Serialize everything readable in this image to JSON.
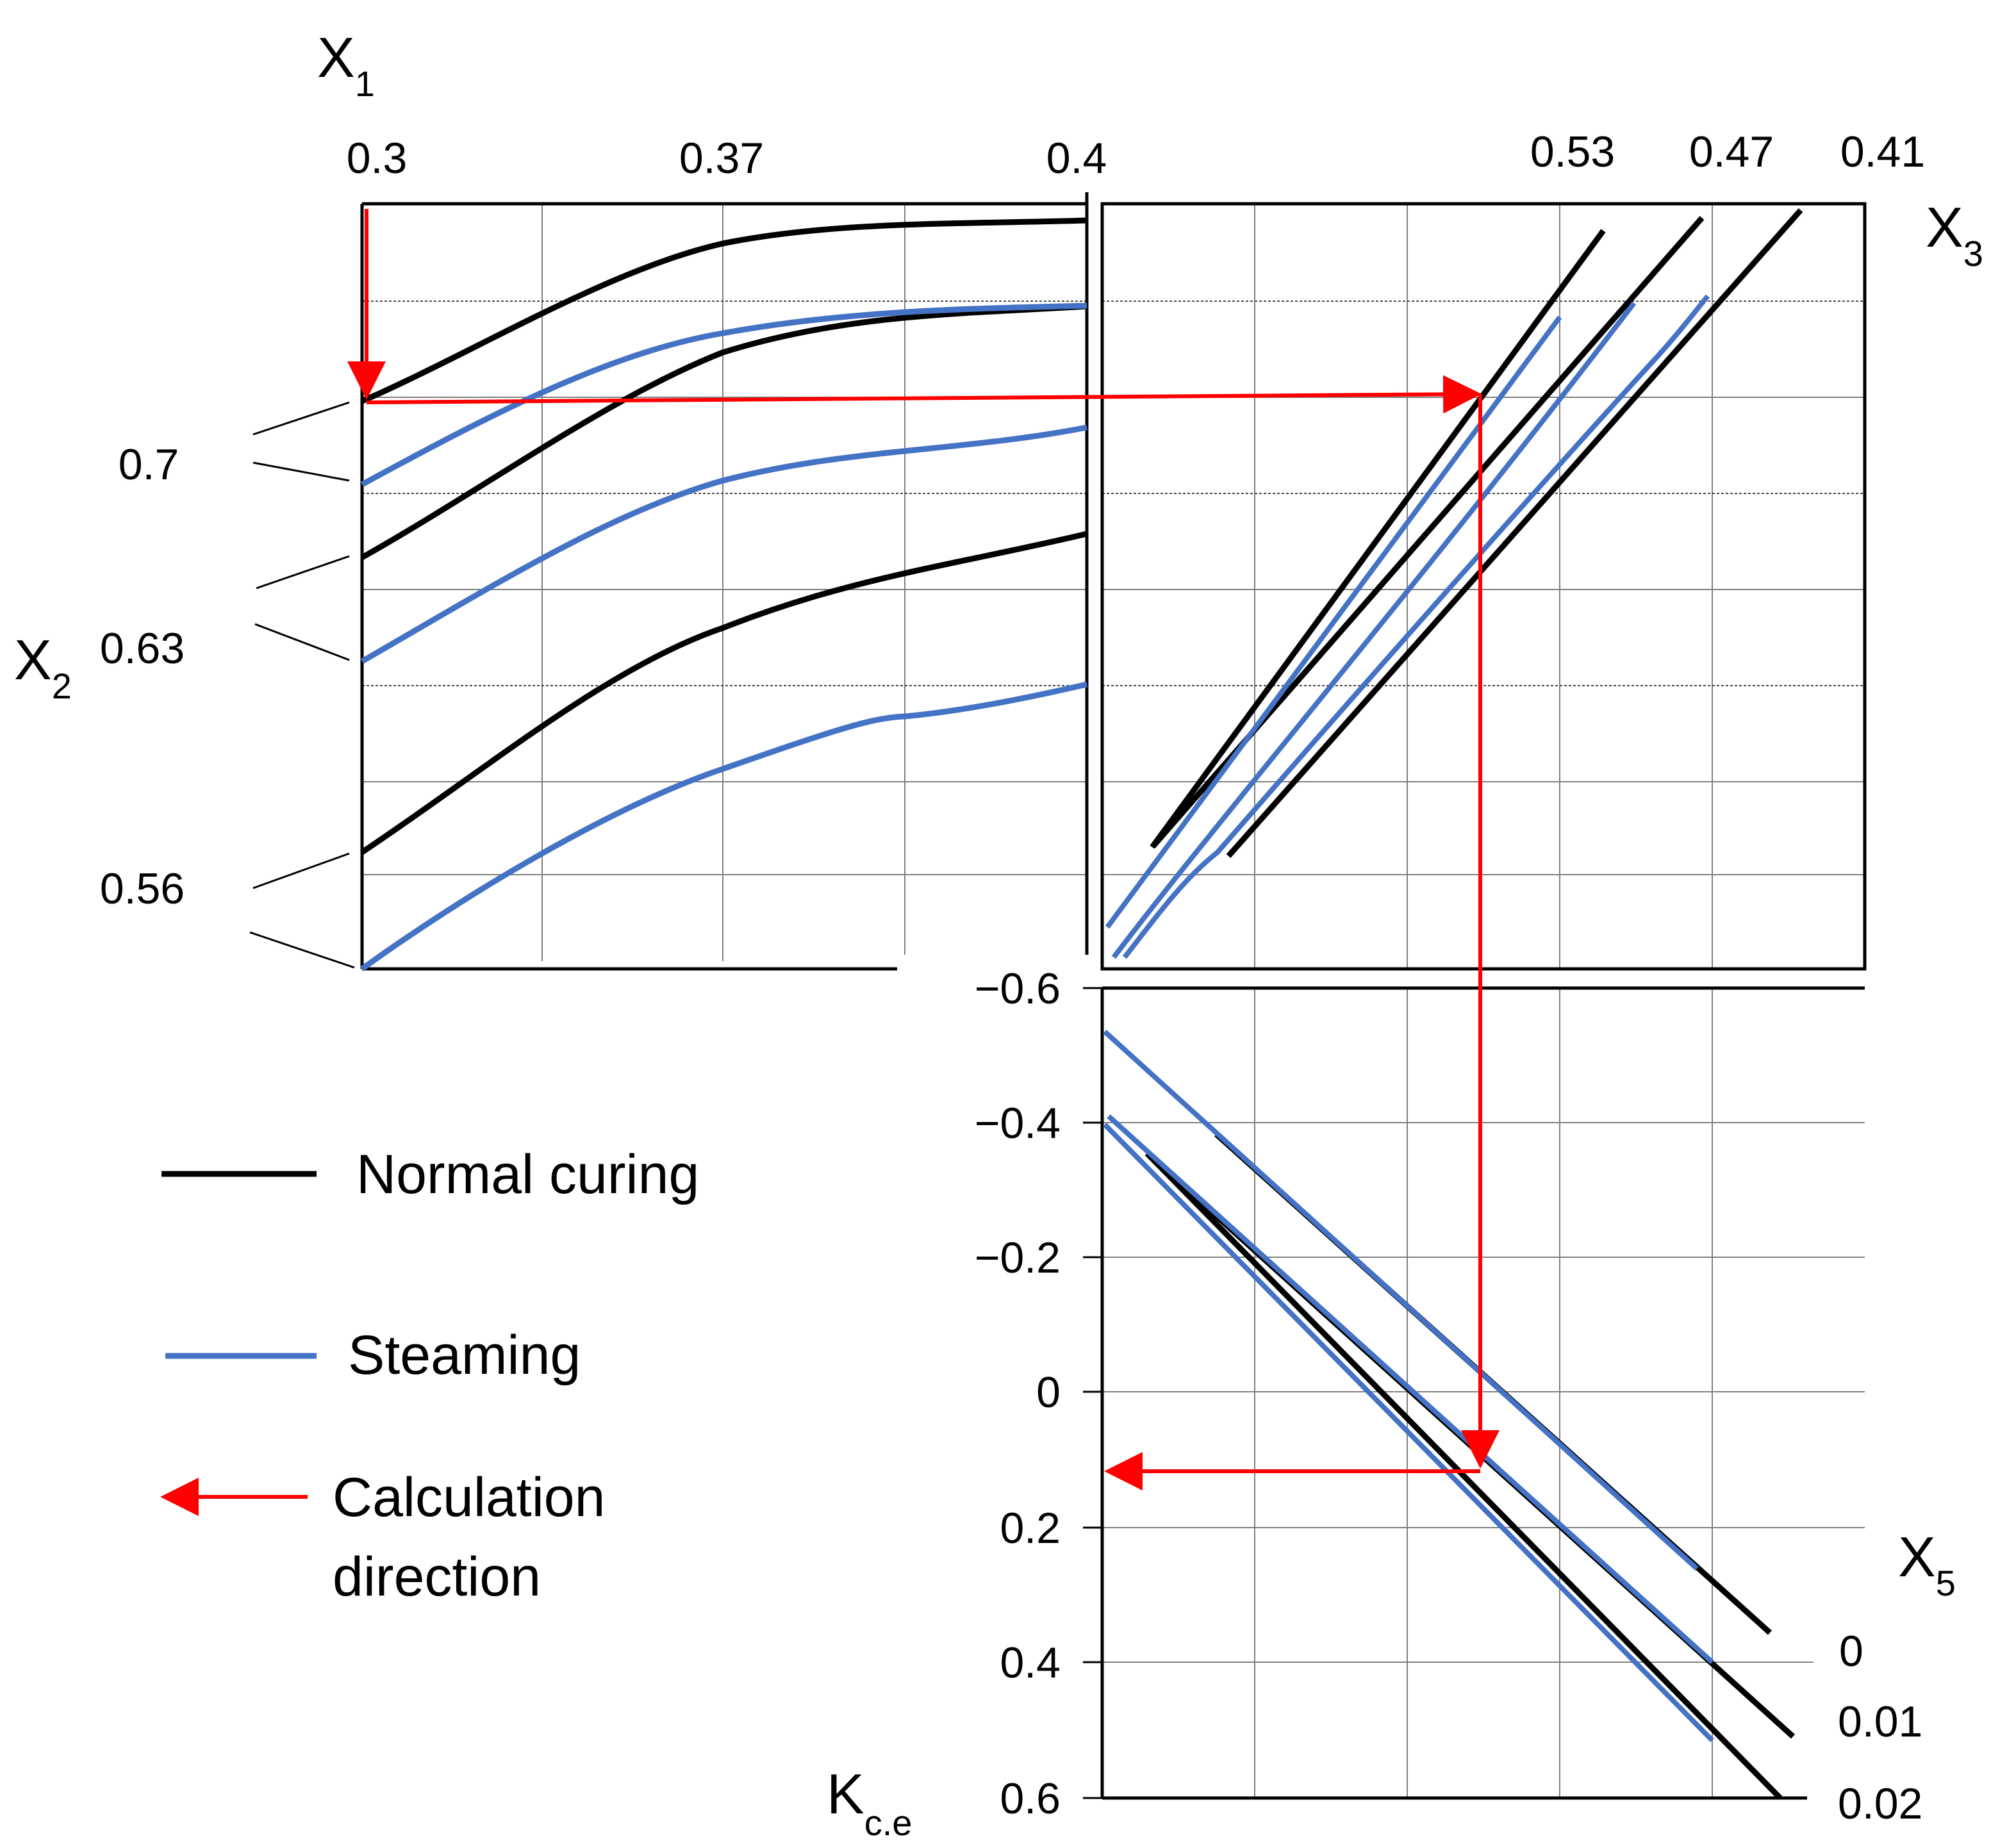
{
  "colors": {
    "normal": "#000000",
    "steaming": "#4472c4",
    "calc": "#ff0000"
  },
  "chart_data": {
    "type": "line",
    "panels": [
      {
        "id": "top-left",
        "xlabel": "X",
        "xlabel_sub": "1",
        "ylabel": "X",
        "ylabel_sub": "2",
        "xticks": [
          "0.3",
          "0.37",
          "0.4"
        ],
        "yticks": [
          "0.7",
          "0.63",
          "0.56"
        ],
        "series": [
          {
            "group": "Normal curing",
            "x": [
              0.3,
              0.33,
              0.36,
              0.38,
              0.4
            ],
            "y": [
              0.8,
              0.9,
              0.98,
              1.0,
              1.0
            ]
          },
          {
            "group": "Steaming",
            "x": [
              0.3,
              0.33,
              0.36,
              0.38,
              0.4
            ],
            "y": [
              0.71,
              0.8,
              0.87,
              0.9,
              0.91
            ]
          },
          {
            "group": "Normal curing",
            "x": [
              0.3,
              0.33,
              0.36,
              0.38,
              0.4
            ],
            "y": [
              0.66,
              0.76,
              0.85,
              0.89,
              0.91
            ]
          },
          {
            "group": "Steaming",
            "x": [
              0.3,
              0.33,
              0.36,
              0.38,
              0.4
            ],
            "y": [
              0.48,
              0.58,
              0.67,
              0.71,
              0.74
            ]
          },
          {
            "group": "Normal curing",
            "x": [
              0.3,
              0.33,
              0.36,
              0.38,
              0.4
            ],
            "y": [
              0.2,
              0.34,
              0.48,
              0.56,
              0.6
            ]
          },
          {
            "group": "Steaming",
            "x": [
              0.3,
              0.33,
              0.36,
              0.38,
              0.4
            ],
            "y": [
              0.0,
              0.15,
              0.29,
              0.35,
              0.4
            ]
          }
        ]
      },
      {
        "id": "top-right",
        "xlabel": "X",
        "xlabel_sub": "3",
        "line_labels": [
          "0.53",
          "0.47",
          "0.41"
        ],
        "series": [
          {
            "group": "Normal curing",
            "label": "0.53",
            "x": [
              0.07,
              0.66
            ],
            "y": [
              0.16,
              0.97
            ]
          },
          {
            "group": "Normal curing",
            "label": "0.47",
            "x": [
              0.07,
              0.79
            ],
            "y": [
              0.16,
              0.97
            ]
          },
          {
            "group": "Normal curing",
            "label": "0.41",
            "x": [
              0.17,
              0.92
            ],
            "y": [
              0.15,
              0.97
            ]
          },
          {
            "group": "Steaming",
            "label": "0.53",
            "x": [
              0.0,
              0.6
            ],
            "y": [
              0.06,
              0.86
            ]
          },
          {
            "group": "Steaming",
            "label": "0.47",
            "x": [
              0.01,
              0.69,
              0.78
            ],
            "y": [
              0.01,
              0.8,
              0.87
            ]
          },
          {
            "group": "Steaming",
            "label": "0.41",
            "x": [
              0.02,
              0.12,
              0.73,
              0.8
            ],
            "y": [
              0.02,
              0.14,
              0.78,
              0.87
            ]
          }
        ]
      },
      {
        "id": "bottom-right",
        "xlabel": "X",
        "xlabel_sub": "5",
        "ylabel": "K",
        "ylabel_sub": "c.e",
        "yticks": [
          "−0.6",
          "−0.4",
          "−0.2",
          "0",
          "0.2",
          "0.4",
          "0.6"
        ],
        "ylim": [
          -0.6,
          0.6
        ],
        "line_labels": [
          "0",
          "0.01",
          "0.02"
        ],
        "series": [
          {
            "group": "Normal curing",
            "label": "0",
            "x": [
              0.15,
              0.9
            ],
            "y": [
              -0.37,
              0.35
            ]
          },
          {
            "group": "Normal curing",
            "label": "0.01",
            "x": [
              0.06,
              0.92
            ],
            "y": [
              -0.35,
              0.51
            ]
          },
          {
            "group": "Normal curing",
            "label": "0.02",
            "x": [
              0.07,
              0.9
            ],
            "y": [
              -0.35,
              0.6
            ]
          },
          {
            "group": "Steaming",
            "label": "0",
            "x": [
              0.0,
              0.78
            ],
            "y": [
              -0.53,
              0.26
            ]
          },
          {
            "group": "Steaming",
            "label": "0.01",
            "x": [
              0.0,
              0.8
            ],
            "y": [
              -0.41,
              0.4
            ]
          },
          {
            "group": "Steaming",
            "label": "0.02",
            "x": [
              0.0,
              0.8
            ],
            "y": [
              -0.41,
              0.51
            ]
          }
        ]
      }
    ],
    "legend": [
      {
        "label": "Normal curing",
        "type": "line",
        "color": "#000000"
      },
      {
        "label": "Steaming",
        "type": "line",
        "color": "#4472c4"
      },
      {
        "label": "Calculation direction",
        "label_line1": "Calculation",
        "label_line2": "direction",
        "type": "arrow",
        "color": "#ff0000"
      }
    ],
    "calculation_path": {
      "x1": 0.3,
      "x2": 0.7,
      "kce": 0.12
    }
  }
}
